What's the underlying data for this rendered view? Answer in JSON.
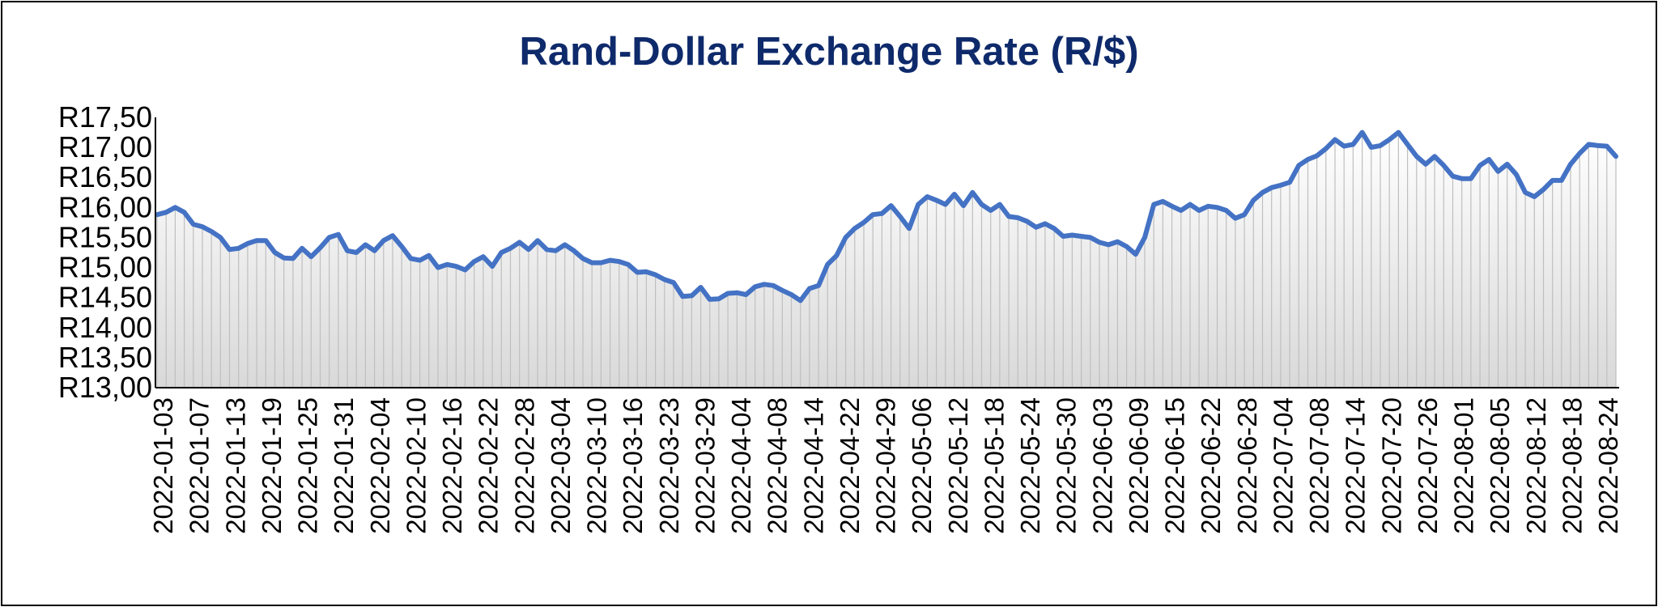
{
  "chart_data": {
    "type": "area",
    "title": "Rand-Dollar Exchange Rate (R/$)",
    "xlabel": "",
    "ylabel": "",
    "ylim": [
      13.0,
      17.5
    ],
    "y_ticks": [
      "R13,00",
      "R13,50",
      "R14,00",
      "R14,50",
      "R15,00",
      "R15,50",
      "R16,00",
      "R16,50",
      "R17,00",
      "R17,50"
    ],
    "x_tick_labels": [
      "2022-01-03",
      "2022-01-07",
      "2022-01-13",
      "2022-01-19",
      "2022-01-25",
      "2022-01-31",
      "2022-02-04",
      "2022-02-10",
      "2022-02-16",
      "2022-02-22",
      "2022-02-28",
      "2022-03-04",
      "2022-03-10",
      "2022-03-16",
      "2022-03-23",
      "2022-03-29",
      "2022-04-04",
      "2022-04-08",
      "2022-04-14",
      "2022-04-22",
      "2022-04-29",
      "2022-05-06",
      "2022-05-12",
      "2022-05-18",
      "2022-05-24",
      "2022-05-30",
      "2022-06-03",
      "2022-06-09",
      "2022-06-15",
      "2022-06-22",
      "2022-06-28",
      "2022-07-04",
      "2022-07-08",
      "2022-07-14",
      "2022-07-20",
      "2022-07-26",
      "2022-08-01",
      "2022-08-05",
      "2022-08-12",
      "2022-08-18",
      "2022-08-24"
    ],
    "grid": false,
    "legend": "none",
    "line_color": "#4472c4",
    "fill_color": "#bfbfbf",
    "title_color": "#0e2a6b",
    "series": [
      {
        "values": [
          15.88,
          15.92,
          16.0,
          15.92,
          15.72,
          15.68,
          15.6,
          15.5,
          15.3,
          15.32,
          15.4,
          15.45,
          15.45,
          15.25,
          15.16,
          15.15,
          15.32,
          15.18,
          15.33,
          15.5,
          15.55,
          15.28,
          15.25,
          15.38,
          15.28,
          15.45,
          15.53,
          15.35,
          15.15,
          15.12,
          15.2,
          15.0,
          15.05,
          15.02,
          14.96,
          15.1,
          15.18,
          15.02,
          15.25,
          15.32,
          15.42,
          15.3,
          15.45,
          15.3,
          15.28,
          15.38,
          15.28,
          15.15,
          15.08,
          15.08,
          15.12,
          15.1,
          15.05,
          14.92,
          14.93,
          14.88,
          14.8,
          14.75,
          14.52,
          14.53,
          14.67,
          14.47,
          14.48,
          14.57,
          14.58,
          14.55,
          14.68,
          14.72,
          14.7,
          14.62,
          14.55,
          14.45,
          14.65,
          14.7,
          15.05,
          15.2,
          15.5,
          15.65,
          15.75,
          15.88,
          15.9,
          16.03,
          15.85,
          15.65,
          16.05,
          16.18,
          16.12,
          16.05,
          16.22,
          16.03,
          16.25,
          16.05,
          15.95,
          16.05,
          15.85,
          15.83,
          15.77,
          15.67,
          15.73,
          15.65,
          15.52,
          15.54,
          15.52,
          15.5,
          15.42,
          15.38,
          15.43,
          15.35,
          15.22,
          15.5,
          16.05,
          16.1,
          16.02,
          15.95,
          16.05,
          15.95,
          16.02,
          16.0,
          15.95,
          15.82,
          15.88,
          16.12,
          16.25,
          16.33,
          16.37,
          16.42,
          16.7,
          16.8,
          16.86,
          16.98,
          17.13,
          17.02,
          17.05,
          17.25,
          17.0,
          17.03,
          17.13,
          17.25,
          17.05,
          16.85,
          16.72,
          16.85,
          16.7,
          16.52,
          16.48,
          16.48,
          16.7,
          16.8,
          16.6,
          16.72,
          16.55,
          16.25,
          16.18,
          16.3,
          16.45,
          16.45,
          16.72,
          16.9,
          17.05,
          17.03,
          17.02,
          16.85
        ]
      }
    ]
  }
}
